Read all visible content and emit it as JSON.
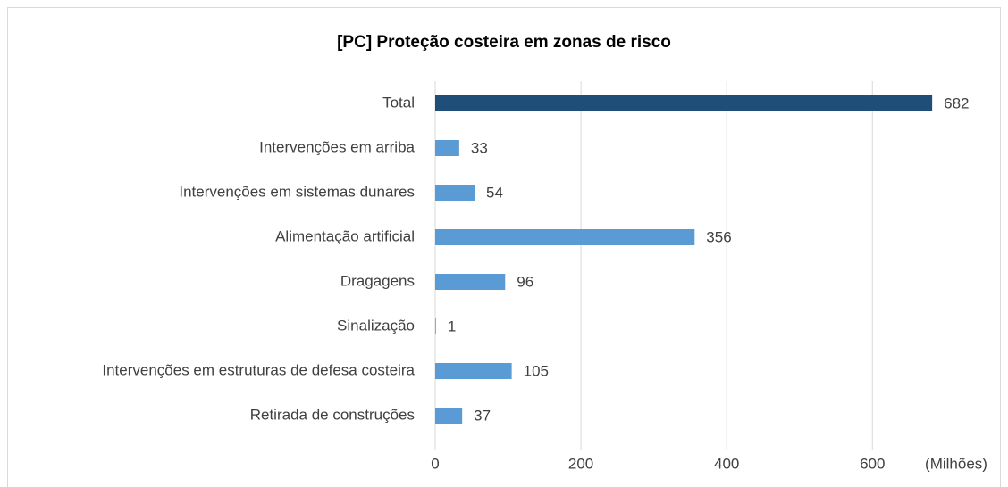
{
  "chart_data": {
    "type": "barh",
    "title": "[PC] Proteção costeira em zonas de risco",
    "xlabel": "(Milhões)",
    "categories": [
      "Total",
      "Intervenções em arriba",
      "Intervenções em sistemas dunares",
      "Alimentação artificial",
      "Dragagens",
      "Sinalização",
      "Intervenções em estruturas de defesa costeira",
      "Retirada de construções"
    ],
    "values": [
      682,
      33,
      54,
      356,
      96,
      1,
      105,
      37
    ],
    "colors": [
      "#1f4e79",
      "#5b9bd5",
      "#5b9bd5",
      "#5b9bd5",
      "#5b9bd5",
      "#5b9bd5",
      "#5b9bd5",
      "#5b9bd5"
    ],
    "xlim": [
      0,
      764
    ],
    "xticks": [
      0,
      200,
      400,
      600
    ],
    "grid": true
  }
}
